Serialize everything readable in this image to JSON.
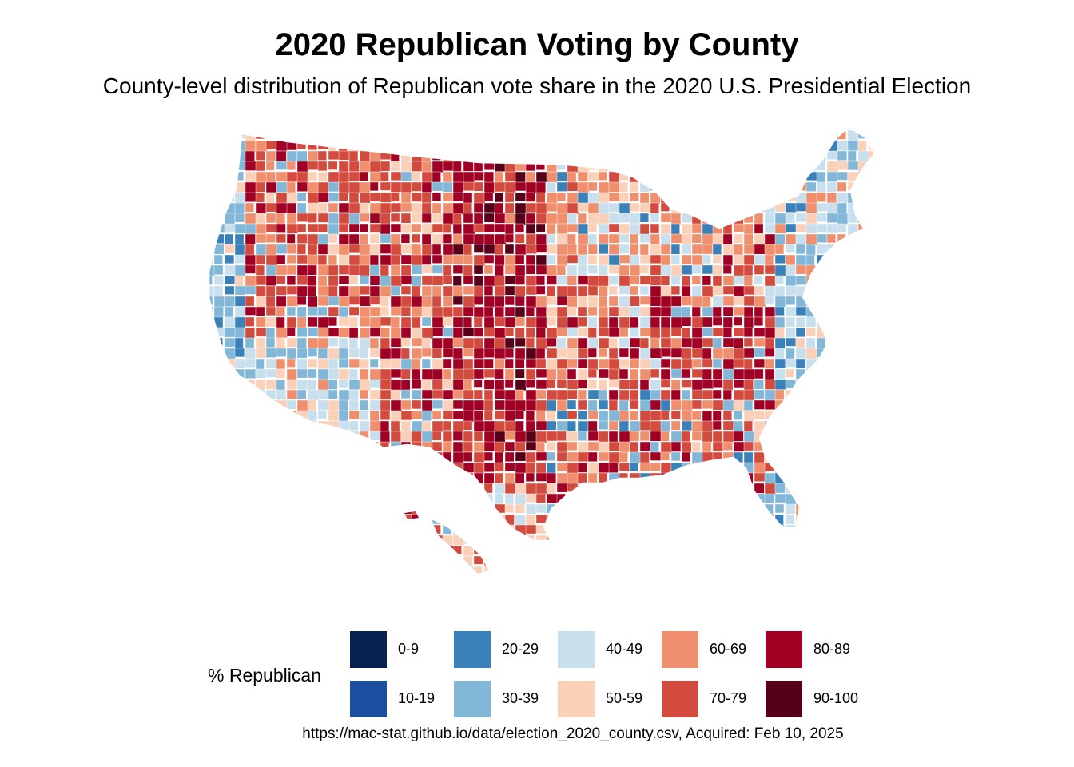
{
  "title": "2020 Republican Voting by County",
  "subtitle": "County-level distribution of Republican vote share in the 2020 U.S. Presidential Election",
  "legend": {
    "title": "% Republican",
    "items": [
      {
        "label": "0-9",
        "color": "#08224f"
      },
      {
        "label": "10-19",
        "color": "#1c4fa0"
      },
      {
        "label": "20-29",
        "color": "#3a80b9"
      },
      {
        "label": "30-39",
        "color": "#82b7d7"
      },
      {
        "label": "40-49",
        "color": "#c8dfed"
      },
      {
        "label": "50-59",
        "color": "#fbd0b9"
      },
      {
        "label": "60-69",
        "color": "#ef8f6e"
      },
      {
        "label": "70-79",
        "color": "#d24b3e"
      },
      {
        "label": "80-89",
        "color": "#a10025"
      },
      {
        "label": "90-100",
        "color": "#560019"
      }
    ]
  },
  "caption": "https://mac-stat.github.io/data/election_2020_county.csv, Acquired: Feb 10, 2025",
  "map": {
    "type": "choropleth",
    "region": "United States counties",
    "variable": "% Republican",
    "dominant_pattern": "Great Plains, Mountain West, Appalachia mostly 70-100; coasts and major metros 0-49"
  }
}
